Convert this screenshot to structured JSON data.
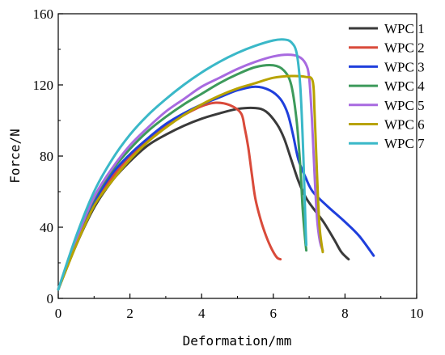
{
  "chart_data": {
    "type": "line",
    "xlabel": "Deformation/mm",
    "ylabel": "Force/N",
    "xlim": [
      0,
      10
    ],
    "ylim": [
      0,
      160
    ],
    "x_ticks": [
      "0",
      "2",
      "4",
      "6",
      "8",
      "10"
    ],
    "y_ticks": [
      "0",
      "40",
      "80",
      "120",
      "160"
    ],
    "grid": false,
    "legend_position": "right",
    "series": [
      {
        "name": "WPC 1",
        "color": "#3a3a3a",
        "points": [
          [
            0,
            5
          ],
          [
            0.5,
            30
          ],
          [
            1,
            51
          ],
          [
            1.5,
            66
          ],
          [
            2,
            77
          ],
          [
            2.5,
            86
          ],
          [
            3,
            92
          ],
          [
            3.5,
            97
          ],
          [
            4,
            101
          ],
          [
            4.5,
            104
          ],
          [
            5,
            106.5
          ],
          [
            5.5,
            107
          ],
          [
            5.8,
            105
          ],
          [
            6.1,
            98
          ],
          [
            6.3,
            90
          ],
          [
            6.5,
            78
          ],
          [
            6.7,
            66
          ],
          [
            6.9,
            57
          ],
          [
            7.1,
            51
          ],
          [
            7.4,
            43
          ],
          [
            7.7,
            33
          ],
          [
            7.9,
            26
          ],
          [
            8.1,
            22
          ]
        ]
      },
      {
        "name": "WPC 2",
        "color": "#d94a3a",
        "points": [
          [
            0,
            5
          ],
          [
            0.5,
            31
          ],
          [
            1,
            53
          ],
          [
            1.5,
            68
          ],
          [
            2,
            80
          ],
          [
            2.5,
            89
          ],
          [
            3,
            97
          ],
          [
            3.5,
            103
          ],
          [
            4,
            108
          ],
          [
            4.4,
            110
          ],
          [
            4.8,
            108.5
          ],
          [
            5.1,
            104
          ],
          [
            5.2,
            96
          ],
          [
            5.3,
            85
          ],
          [
            5.4,
            70
          ],
          [
            5.5,
            56
          ],
          [
            5.65,
            44
          ],
          [
            5.8,
            35
          ],
          [
            5.95,
            28
          ],
          [
            6.1,
            23
          ],
          [
            6.2,
            22
          ]
        ]
      },
      {
        "name": "WPC 3",
        "color": "#1f3fdc",
        "points": [
          [
            0,
            5
          ],
          [
            0.5,
            32
          ],
          [
            1,
            54
          ],
          [
            1.5,
            70
          ],
          [
            2,
            81
          ],
          [
            2.5,
            90
          ],
          [
            3,
            98
          ],
          [
            3.5,
            104
          ],
          [
            4,
            109
          ],
          [
            4.5,
            113
          ],
          [
            5,
            117
          ],
          [
            5.5,
            119
          ],
          [
            5.9,
            117
          ],
          [
            6.2,
            112
          ],
          [
            6.4,
            104
          ],
          [
            6.55,
            92
          ],
          [
            6.7,
            78
          ],
          [
            6.9,
            68
          ],
          [
            7.1,
            60
          ],
          [
            7.5,
            52
          ],
          [
            8,
            43
          ],
          [
            8.4,
            35
          ],
          [
            8.8,
            24
          ]
        ]
      },
      {
        "name": "WPC 4",
        "color": "#3d9a5b",
        "points": [
          [
            0,
            5
          ],
          [
            0.5,
            33
          ],
          [
            1,
            56
          ],
          [
            1.5,
            72
          ],
          [
            2,
            84
          ],
          [
            2.5,
            94
          ],
          [
            3,
            102
          ],
          [
            3.5,
            109
          ],
          [
            4,
            115
          ],
          [
            4.5,
            121
          ],
          [
            5,
            126
          ],
          [
            5.5,
            130
          ],
          [
            6,
            131
          ],
          [
            6.3,
            128
          ],
          [
            6.5,
            120
          ],
          [
            6.65,
            100
          ],
          [
            6.75,
            75
          ],
          [
            6.82,
            50
          ],
          [
            6.88,
            35
          ],
          [
            6.92,
            27
          ]
        ]
      },
      {
        "name": "WPC 5",
        "color": "#a86ae0",
        "points": [
          [
            0,
            5
          ],
          [
            0.5,
            33
          ],
          [
            1,
            57
          ],
          [
            1.5,
            73
          ],
          [
            2,
            86
          ],
          [
            2.5,
            96
          ],
          [
            3,
            105
          ],
          [
            3.5,
            112
          ],
          [
            4,
            119
          ],
          [
            4.5,
            124
          ],
          [
            5,
            129
          ],
          [
            5.5,
            133
          ],
          [
            6,
            136
          ],
          [
            6.4,
            137
          ],
          [
            6.7,
            136
          ],
          [
            6.9,
            132
          ],
          [
            7,
            124
          ],
          [
            7.08,
            100
          ],
          [
            7.15,
            70
          ],
          [
            7.22,
            45
          ],
          [
            7.3,
            32
          ],
          [
            7.38,
            27
          ]
        ]
      },
      {
        "name": "WPC 6",
        "color": "#b8a300",
        "points": [
          [
            0,
            5
          ],
          [
            0.5,
            30
          ],
          [
            1,
            52
          ],
          [
            1.5,
            66
          ],
          [
            2,
            78
          ],
          [
            2.5,
            88
          ],
          [
            3,
            96
          ],
          [
            3.5,
            103
          ],
          [
            4,
            109
          ],
          [
            4.5,
            114
          ],
          [
            5,
            118
          ],
          [
            5.5,
            121
          ],
          [
            6,
            124
          ],
          [
            6.5,
            125
          ],
          [
            6.9,
            124.5
          ],
          [
            7.1,
            122
          ],
          [
            7.15,
            105
          ],
          [
            7.2,
            80
          ],
          [
            7.25,
            55
          ],
          [
            7.3,
            38
          ],
          [
            7.38,
            26
          ]
        ]
      },
      {
        "name": "WPC 7",
        "color": "#3ab8c8",
        "points": [
          [
            0,
            5
          ],
          [
            0.5,
            35
          ],
          [
            1,
            60
          ],
          [
            1.5,
            78
          ],
          [
            2,
            92
          ],
          [
            2.5,
            103
          ],
          [
            3,
            112
          ],
          [
            3.5,
            120
          ],
          [
            4,
            127
          ],
          [
            4.5,
            133
          ],
          [
            5,
            138
          ],
          [
            5.5,
            142
          ],
          [
            6,
            145
          ],
          [
            6.3,
            145.5
          ],
          [
            6.5,
            144
          ],
          [
            6.65,
            138
          ],
          [
            6.75,
            120
          ],
          [
            6.82,
            90
          ],
          [
            6.87,
            60
          ],
          [
            6.9,
            40
          ],
          [
            6.92,
            30
          ]
        ]
      }
    ]
  }
}
